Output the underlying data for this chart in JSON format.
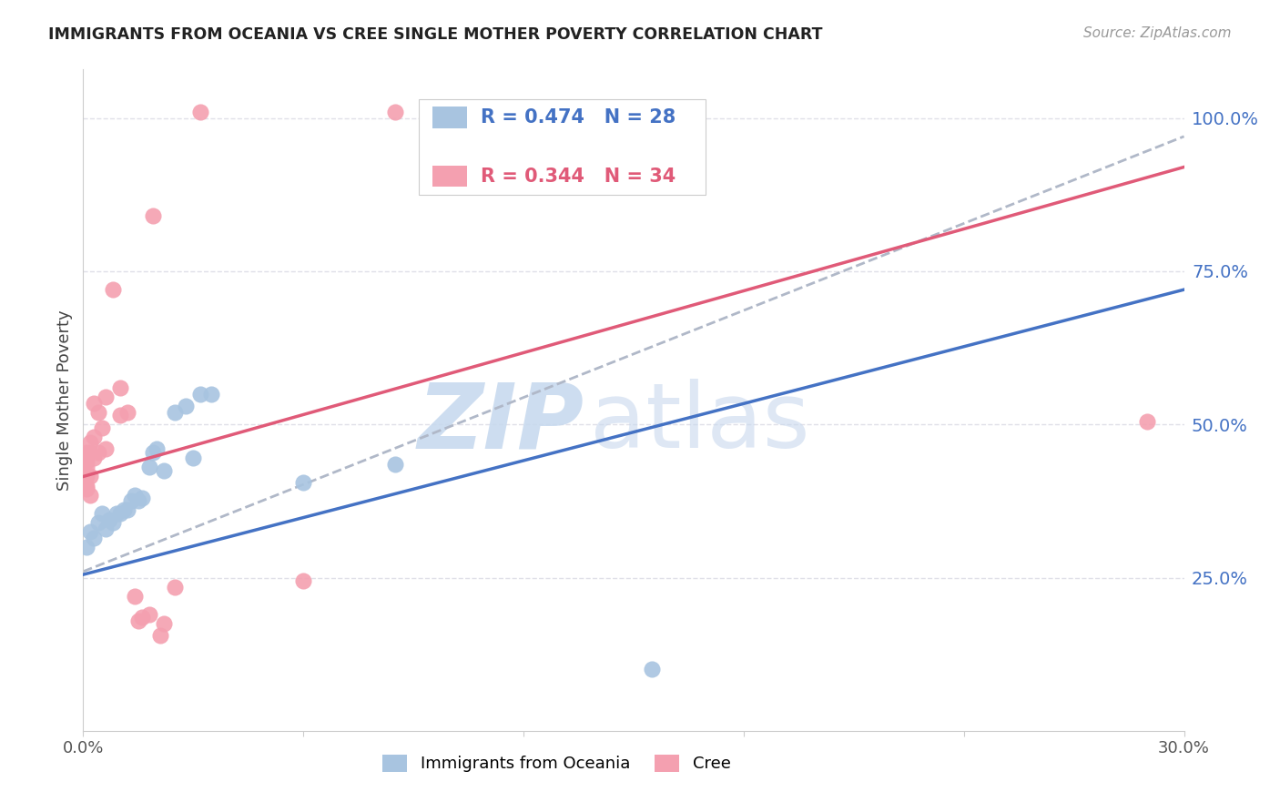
{
  "title": "IMMIGRANTS FROM OCEANIA VS CREE SINGLE MOTHER POVERTY CORRELATION CHART",
  "source": "Source: ZipAtlas.com",
  "ylabel": "Single Mother Poverty",
  "right_yticks": [
    "100.0%",
    "75.0%",
    "50.0%",
    "25.0%"
  ],
  "right_ytick_vals": [
    1.0,
    0.75,
    0.5,
    0.25
  ],
  "legend_blue_r": "0.474",
  "legend_blue_n": "28",
  "legend_pink_r": "0.344",
  "legend_pink_n": "34",
  "xmin": 0.0,
  "xmax": 0.3,
  "ymin": 0.0,
  "ymax": 1.08,
  "blue_color": "#a8c4e0",
  "pink_color": "#f4a0b0",
  "blue_line_color": "#4472c4",
  "pink_line_color": "#e05a78",
  "dashed_line_color": "#b0b8c8",
  "watermark_color": "#c8d8ee",
  "grid_color": "#e0e0e8",
  "right_tick_color": "#4472c4",
  "blue_scatter": [
    [
      0.001,
      0.3
    ],
    [
      0.002,
      0.325
    ],
    [
      0.003,
      0.315
    ],
    [
      0.004,
      0.34
    ],
    [
      0.005,
      0.355
    ],
    [
      0.006,
      0.33
    ],
    [
      0.007,
      0.345
    ],
    [
      0.008,
      0.34
    ],
    [
      0.009,
      0.355
    ],
    [
      0.01,
      0.355
    ],
    [
      0.011,
      0.36
    ],
    [
      0.012,
      0.36
    ],
    [
      0.013,
      0.375
    ],
    [
      0.014,
      0.385
    ],
    [
      0.015,
      0.375
    ],
    [
      0.016,
      0.38
    ],
    [
      0.018,
      0.43
    ],
    [
      0.019,
      0.455
    ],
    [
      0.02,
      0.46
    ],
    [
      0.022,
      0.425
    ],
    [
      0.025,
      0.52
    ],
    [
      0.028,
      0.53
    ],
    [
      0.03,
      0.445
    ],
    [
      0.032,
      0.55
    ],
    [
      0.035,
      0.55
    ],
    [
      0.06,
      0.405
    ],
    [
      0.085,
      0.435
    ],
    [
      0.155,
      0.1
    ]
  ],
  "pink_scatter": [
    [
      0.001,
      0.395
    ],
    [
      0.001,
      0.4
    ],
    [
      0.001,
      0.415
    ],
    [
      0.001,
      0.43
    ],
    [
      0.001,
      0.44
    ],
    [
      0.001,
      0.455
    ],
    [
      0.002,
      0.385
    ],
    [
      0.002,
      0.415
    ],
    [
      0.002,
      0.455
    ],
    [
      0.002,
      0.47
    ],
    [
      0.003,
      0.445
    ],
    [
      0.003,
      0.48
    ],
    [
      0.003,
      0.535
    ],
    [
      0.004,
      0.455
    ],
    [
      0.004,
      0.52
    ],
    [
      0.005,
      0.495
    ],
    [
      0.006,
      0.46
    ],
    [
      0.006,
      0.545
    ],
    [
      0.008,
      0.72
    ],
    [
      0.01,
      0.515
    ],
    [
      0.01,
      0.56
    ],
    [
      0.012,
      0.52
    ],
    [
      0.014,
      0.22
    ],
    [
      0.015,
      0.18
    ],
    [
      0.016,
      0.185
    ],
    [
      0.018,
      0.19
    ],
    [
      0.019,
      0.84
    ],
    [
      0.021,
      0.155
    ],
    [
      0.022,
      0.175
    ],
    [
      0.025,
      0.235
    ],
    [
      0.032,
      1.01
    ],
    [
      0.06,
      0.245
    ],
    [
      0.085,
      1.01
    ],
    [
      0.29,
      0.505
    ]
  ],
  "blue_line_x": [
    0.0,
    0.3
  ],
  "blue_line_y": [
    0.255,
    0.72
  ],
  "pink_line_x": [
    0.0,
    0.3
  ],
  "pink_line_y": [
    0.415,
    0.92
  ],
  "dashed_line_x": [
    0.0,
    0.3
  ],
  "dashed_line_y": [
    0.26,
    0.97
  ]
}
